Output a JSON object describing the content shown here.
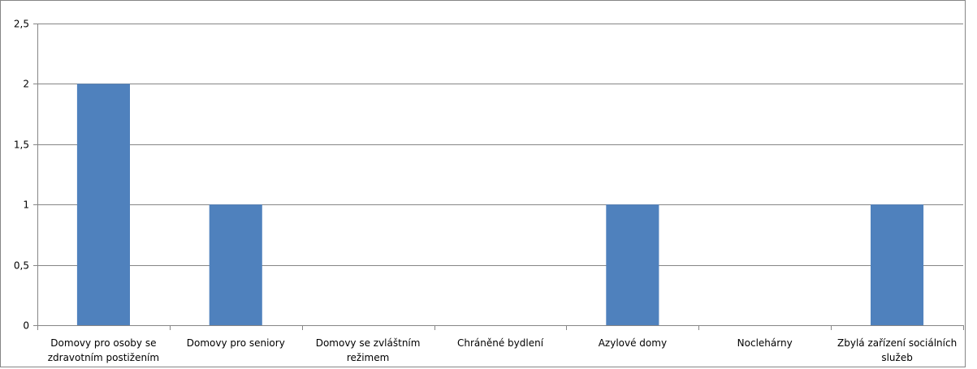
{
  "chart_data": {
    "type": "bar",
    "title": "",
    "xlabel": "",
    "ylabel": "",
    "categories": [
      [
        "Domovy pro osoby se",
        "zdravotním postižením"
      ],
      [
        "Domovy pro seniory"
      ],
      [
        "Domovy se zvláštním",
        "režimem"
      ],
      [
        "Chráněné bydlení"
      ],
      [
        "Azylové domy"
      ],
      [
        "Noclehárny"
      ],
      [
        "Zbylá zařízení sociálních",
        "služeb"
      ]
    ],
    "values": [
      2,
      1,
      0,
      0,
      1,
      0,
      1
    ],
    "ylim": [
      0,
      2.5
    ],
    "yticks": [
      "0",
      "0,5",
      "1",
      "1,5",
      "2",
      "2,5"
    ],
    "grid": true,
    "legend": "none",
    "colors": {
      "bar": "#4f81bd",
      "grid": "#868686",
      "axis": "#868686",
      "border": "#868686"
    }
  }
}
